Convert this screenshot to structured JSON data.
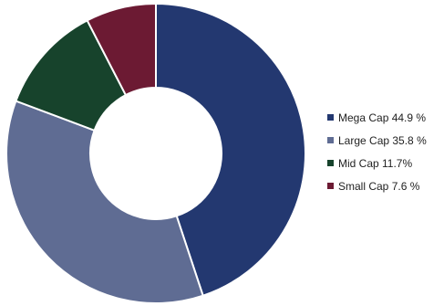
{
  "chart_data": {
    "type": "pie",
    "donut": true,
    "legend_position": "right",
    "series": [
      {
        "name": "Mega Cap",
        "value": 44.9,
        "label": "Mega Cap 44.9 %",
        "color": "#233870"
      },
      {
        "name": "Large Cap",
        "value": 35.8,
        "label": "Large Cap 35.8 %",
        "color": "#5f6c93"
      },
      {
        "name": "Mid Cap",
        "value": 11.7,
        "label": "Mid Cap 11.7%",
        "color": "#17432c"
      },
      {
        "name": "Small Cap",
        "value": 7.6,
        "label": "Small Cap 7.6 %",
        "color": "#6c1a33"
      }
    ]
  }
}
